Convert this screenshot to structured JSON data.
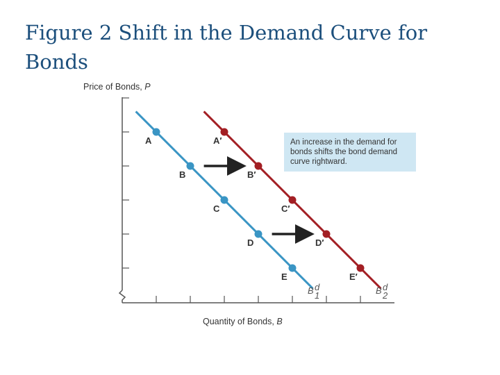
{
  "title_line1": "Figure 2 Shift in the Demand Curve for",
  "title_line2": "Bonds",
  "colors": {
    "title": "#1c4f7c",
    "demand_1": "#3a95c4",
    "demand_2": "#a31f24",
    "callout_bg": "#cfe7f3",
    "arrow": "#222222"
  },
  "chart_data": {
    "type": "line",
    "ylabel_text": "Price of Bonds, ",
    "ylabel_var": "P",
    "xlabel_text": "Quantity of Bonds, ",
    "xlabel_var": "B",
    "series": [
      {
        "label_base": "B",
        "label_sup": "d",
        "label_sub": "1",
        "points": [
          {
            "name": "A",
            "x": 1,
            "y": 5
          },
          {
            "name": "B",
            "x": 2,
            "y": 4
          },
          {
            "name": "C",
            "x": 3,
            "y": 3
          },
          {
            "name": "D",
            "x": 4,
            "y": 2
          },
          {
            "name": "E",
            "x": 5,
            "y": 1
          }
        ]
      },
      {
        "label_base": "B",
        "label_sup": "d",
        "label_sub": "2",
        "points": [
          {
            "name": "A′",
            "x": 3,
            "y": 5
          },
          {
            "name": "B′",
            "x": 4,
            "y": 4
          },
          {
            "name": "C′",
            "x": 5,
            "y": 3
          },
          {
            "name": "D′",
            "x": 6,
            "y": 2
          },
          {
            "name": "E′",
            "x": 7,
            "y": 1
          }
        ]
      }
    ],
    "shift_arrows": [
      {
        "from": [
          2.4,
          4
        ],
        "to": [
          3.6,
          4
        ]
      },
      {
        "from": [
          4.4,
          2
        ],
        "to": [
          5.6,
          2
        ]
      }
    ],
    "annotation_lines": [
      "An increase in the demand for",
      "bonds shifts the bond demand",
      "curve rightward."
    ]
  }
}
